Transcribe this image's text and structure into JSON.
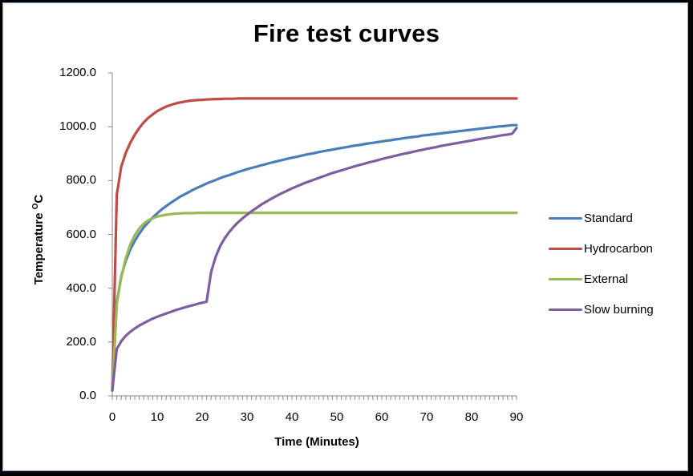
{
  "chart_data": {
    "type": "line",
    "title": "Fire test curves",
    "xlabel": "Time (Minutes)",
    "ylabel": "Temperature °C",
    "ylabel_base": "Temperature ",
    "ylabel_sup": "O",
    "ylabel_unit": "C",
    "xlim": [
      0,
      90
    ],
    "ylim": [
      0,
      1200
    ],
    "x_ticks": [
      "0",
      "10",
      "20",
      "30",
      "40",
      "50",
      "60",
      "70",
      "80",
      "90"
    ],
    "y_ticks": [
      "0.0",
      "200.0",
      "400.0",
      "600.0",
      "800.0",
      "1000.0",
      "1200.0"
    ],
    "grid": false,
    "legend_position": "right",
    "x": [
      0,
      1,
      2,
      3,
      4,
      5,
      6,
      7,
      8,
      9,
      10,
      11,
      12,
      13,
      14,
      15,
      16,
      17,
      18,
      19,
      20,
      21,
      22,
      23,
      24,
      25,
      26,
      27,
      28,
      29,
      30,
      31,
      32,
      33,
      34,
      35,
      36,
      37,
      38,
      39,
      40,
      41,
      42,
      43,
      44,
      45,
      46,
      47,
      48,
      49,
      50,
      51,
      52,
      53,
      54,
      55,
      56,
      57,
      58,
      59,
      60,
      61,
      62,
      63,
      64,
      65,
      66,
      67,
      68,
      69,
      70,
      71,
      72,
      73,
      74,
      75,
      76,
      77,
      78,
      79,
      80,
      81,
      82,
      83,
      84,
      85,
      86,
      87,
      88,
      89,
      90
    ],
    "series": [
      {
        "name": "Standard",
        "color": "#4a7ebb",
        "values": [
          20,
          349,
          445,
          502,
          544,
          576,
          603,
          626,
          645,
          663,
          678,
          693,
          705,
          717,
          728,
          739,
          748,
          757,
          766,
          774,
          781,
          789,
          796,
          802,
          809,
          815,
          820,
          826,
          832,
          837,
          842,
          847,
          851,
          856,
          860,
          865,
          869,
          873,
          877,
          881,
          885,
          888,
          892,
          896,
          899,
          902,
          906,
          909,
          912,
          915,
          918,
          921,
          924,
          927,
          930,
          932,
          935,
          938,
          940,
          943,
          945,
          948,
          950,
          953,
          955,
          958,
          960,
          962,
          964,
          967,
          969,
          971,
          973,
          975,
          977,
          979,
          981,
          983,
          985,
          987,
          989,
          991,
          993,
          995,
          997,
          999,
          1001,
          1002,
          1004,
          1006,
          1006
        ]
      },
      {
        "name": "Hydrocarbon",
        "color": "#be4b48",
        "values": [
          20,
          748,
          852,
          903,
          940,
          970,
          995,
          1016,
          1033,
          1046,
          1058,
          1067,
          1075,
          1081,
          1086,
          1090,
          1093,
          1096,
          1098,
          1099,
          1100,
          1101,
          1102,
          1103,
          1103,
          1104,
          1104,
          1104,
          1105,
          1105,
          1105,
          1105,
          1105,
          1105,
          1105,
          1105,
          1105,
          1105,
          1105,
          1105,
          1105,
          1105,
          1105,
          1105,
          1105,
          1105,
          1105,
          1105,
          1105,
          1105,
          1105,
          1105,
          1105,
          1105,
          1105,
          1105,
          1105,
          1105,
          1105,
          1105,
          1105,
          1105,
          1105,
          1105,
          1105,
          1105,
          1105,
          1105,
          1105,
          1105,
          1105,
          1105,
          1105,
          1105,
          1105,
          1105,
          1105,
          1105,
          1105,
          1105,
          1105,
          1105,
          1105,
          1105,
          1105,
          1105,
          1105,
          1105,
          1105,
          1105,
          1105
        ]
      },
      {
        "name": "External",
        "color": "#98b954",
        "values": [
          20,
          342,
          440,
          512,
          562,
          597,
          622,
          640,
          652,
          660,
          666,
          670,
          673,
          675,
          677,
          678,
          679,
          679,
          679,
          680,
          680,
          680,
          680,
          680,
          680,
          680,
          680,
          680,
          680,
          680,
          680,
          680,
          680,
          680,
          680,
          680,
          680,
          680,
          680,
          680,
          680,
          680,
          680,
          680,
          680,
          680,
          680,
          680,
          680,
          680,
          680,
          680,
          680,
          680,
          680,
          680,
          680,
          680,
          680,
          680,
          680,
          680,
          680,
          680,
          680,
          680,
          680,
          680,
          680,
          680,
          680,
          680,
          680,
          680,
          680,
          680,
          680,
          680,
          680,
          680,
          680,
          680,
          680,
          680,
          680,
          680,
          680,
          680,
          680,
          680,
          680
        ]
      },
      {
        "name": "Slow burning",
        "color": "#7d5fa0",
        "values": [
          20,
          174,
          203,
          223,
          238,
          250,
          261,
          270,
          279,
          287,
          294,
          300,
          306,
          312,
          318,
          323,
          328,
          333,
          337,
          342,
          346,
          350,
          460,
          516,
          556,
          585,
          608,
          628,
          645,
          660,
          673,
          686,
          697,
          709,
          719,
          729,
          738,
          747,
          755,
          763,
          771,
          778,
          785,
          792,
          798,
          804,
          810,
          816,
          822,
          828,
          833,
          838,
          843,
          848,
          853,
          858,
          862,
          867,
          871,
          875,
          880,
          884,
          888,
          892,
          896,
          900,
          903,
          907,
          911,
          914,
          918,
          921,
          924,
          928,
          931,
          934,
          937,
          940,
          943,
          946,
          949,
          952,
          955,
          958,
          960,
          963,
          966,
          969,
          971,
          974,
          995
        ]
      }
    ]
  },
  "legend": {
    "items": [
      {
        "label": "Standard",
        "color": "#4a7ebb"
      },
      {
        "label": "Hydrocarbon",
        "color": "#be4b48"
      },
      {
        "label": "External",
        "color": "#98b954"
      },
      {
        "label": "Slow burning",
        "color": "#7d5fa0"
      }
    ]
  },
  "colors": {
    "axis": "#868686",
    "background": "#ffffff",
    "frame": "#000000"
  }
}
